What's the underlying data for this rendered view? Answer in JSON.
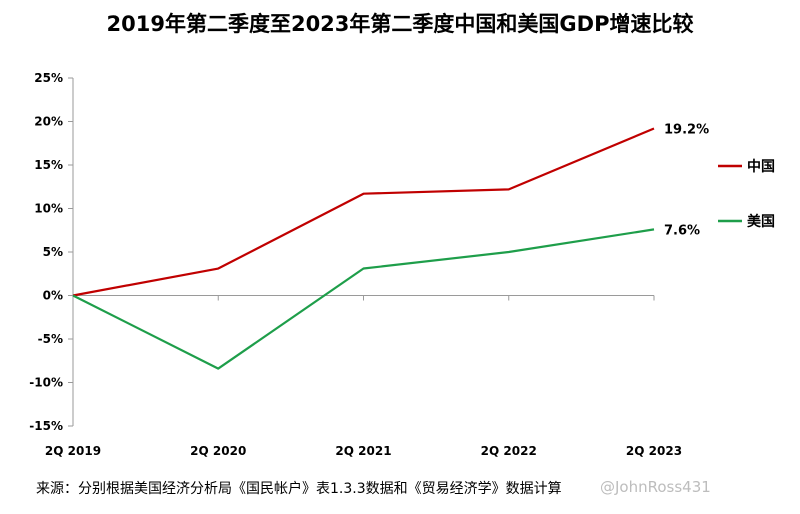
{
  "chart_data": {
    "type": "line",
    "title": "2019年第二季度至2023年第二季度中国和美国GDP增速比较",
    "categories": [
      "2Q 2019",
      "2Q 2020",
      "2Q 2021",
      "2Q 2022",
      "2Q 2023"
    ],
    "y_ticks": [
      "25%",
      "20%",
      "15%",
      "10%",
      "5%",
      "0%",
      "-5%",
      "-10%",
      "-15%"
    ],
    "ylim": [
      -15,
      25
    ],
    "grid": false,
    "legend_position": "right",
    "series": [
      {
        "name": "中国",
        "color": "#c00000",
        "values": [
          0,
          3.1,
          11.7,
          12.2,
          19.2
        ],
        "end_label": "19.2%"
      },
      {
        "name": "美国",
        "color": "#1e9e4a",
        "values": [
          0,
          -8.4,
          3.1,
          5.0,
          7.6
        ],
        "end_label": "7.6%"
      }
    ]
  },
  "source_note": "来源：分别根据美国经济分析局《国民帐户》表1.3.3数据和《贸易经济学》数据计算",
  "watermark": "@JohnRoss431"
}
